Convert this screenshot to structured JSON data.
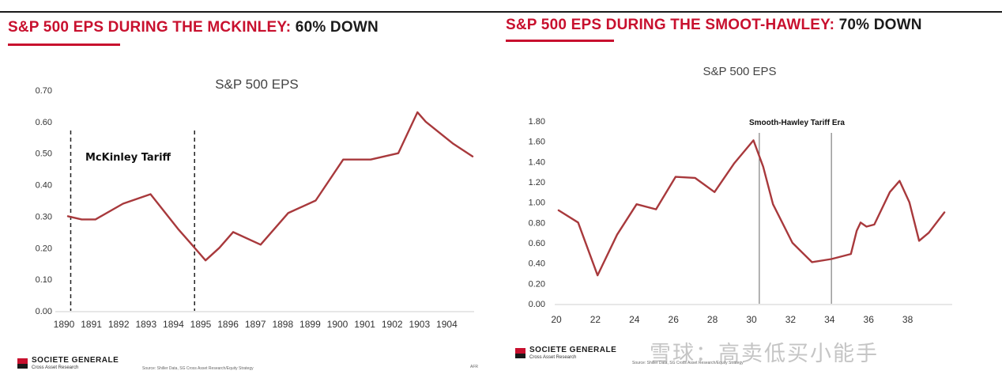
{
  "left": {
    "heading_red": "S&P 500 EPS DURING THE MCKINLEY:",
    "heading_dark": " 60% DOWN",
    "logo_name": "SOCIETE GENERALE",
    "logo_sub": "Cross Asset Research",
    "source_note": "Source: Shiller Data, SG Cross Asset Research/Equity Strategy",
    "corner_note": "AFR"
  },
  "right": {
    "heading_red": "S&P 500 EPS DURING THE SMOOT-HAWLEY:",
    "heading_dark": " 70% DOWN",
    "logo_name": "SOCIETE GENERALE",
    "logo_sub": "Cross Asset Research",
    "source_note": "Source: Shiller Data, SG Cross Asset Research/Equity Strategy",
    "watermark": "雪球：高卖低买小能手"
  },
  "colors": {
    "accent": "#c8102e",
    "line": "#a8393c",
    "text": "#1b1b1b"
  },
  "chart_data": [
    {
      "type": "line",
      "title": "S&P 500 EPS",
      "xlabel": "",
      "ylabel": "",
      "ylim": [
        0,
        0.7
      ],
      "yticks": [
        "0.00",
        "0.10",
        "0.20",
        "0.30",
        "0.40",
        "0.50",
        "0.60",
        "0.70"
      ],
      "xticks": [
        "1890",
        "1891",
        "1892",
        "1893",
        "1894",
        "1895",
        "1896",
        "1897",
        "1898",
        "1899",
        "1900",
        "1901",
        "1902",
        "1903",
        "1904"
      ],
      "grid": false,
      "series": [
        {
          "name": "S&P 500 EPS",
          "x": [
            1890,
            1890.5,
            1891,
            1892,
            1893,
            1894,
            1894.4,
            1895,
            1895.5,
            1896,
            1897,
            1898,
            1899,
            1900,
            1901,
            1902,
            1902.7,
            1903,
            1904,
            1904.7
          ],
          "y": [
            0.3,
            0.29,
            0.29,
            0.34,
            0.37,
            0.26,
            0.22,
            0.16,
            0.2,
            0.25,
            0.21,
            0.31,
            0.35,
            0.48,
            0.48,
            0.5,
            0.63,
            0.6,
            0.53,
            0.49
          ]
        }
      ],
      "markers": [
        {
          "x": 1890.1,
          "label": ""
        },
        {
          "x": 1894.6,
          "label": ""
        }
      ],
      "annotation": "McKinley Tariff"
    },
    {
      "type": "line",
      "title": "S&P 500 EPS",
      "xlabel": "",
      "ylabel": "",
      "ylim": [
        0,
        1.8
      ],
      "yticks": [
        "0.00",
        "0.20",
        "0.40",
        "0.60",
        "0.80",
        "1.00",
        "1.20",
        "1.40",
        "1.60",
        "1.80"
      ],
      "xticks": [
        "20",
        "22",
        "24",
        "26",
        "28",
        "30",
        "32",
        "34",
        "36",
        "38"
      ],
      "grid": false,
      "series": [
        {
          "name": "S&P 500 EPS",
          "x": [
            20,
            21,
            22,
            23,
            24,
            25,
            26,
            27,
            28,
            29,
            30,
            30.5,
            31,
            32,
            33,
            34,
            35,
            35.3,
            35.5,
            35.8,
            36.2,
            37,
            37.5,
            38,
            38.5,
            39,
            39.8
          ],
          "y": [
            0.92,
            0.8,
            0.28,
            0.68,
            0.98,
            0.93,
            1.25,
            1.24,
            1.1,
            1.38,
            1.61,
            1.35,
            0.98,
            0.6,
            0.41,
            0.44,
            0.49,
            0.72,
            0.8,
            0.76,
            0.78,
            1.1,
            1.21,
            1.0,
            0.62,
            0.7,
            0.9
          ]
        }
      ],
      "markers": [
        {
          "x": 30.3,
          "label": ""
        },
        {
          "x": 34.0,
          "label": ""
        }
      ],
      "annotation": "Smooth-Hawley Tariff Era"
    }
  ]
}
